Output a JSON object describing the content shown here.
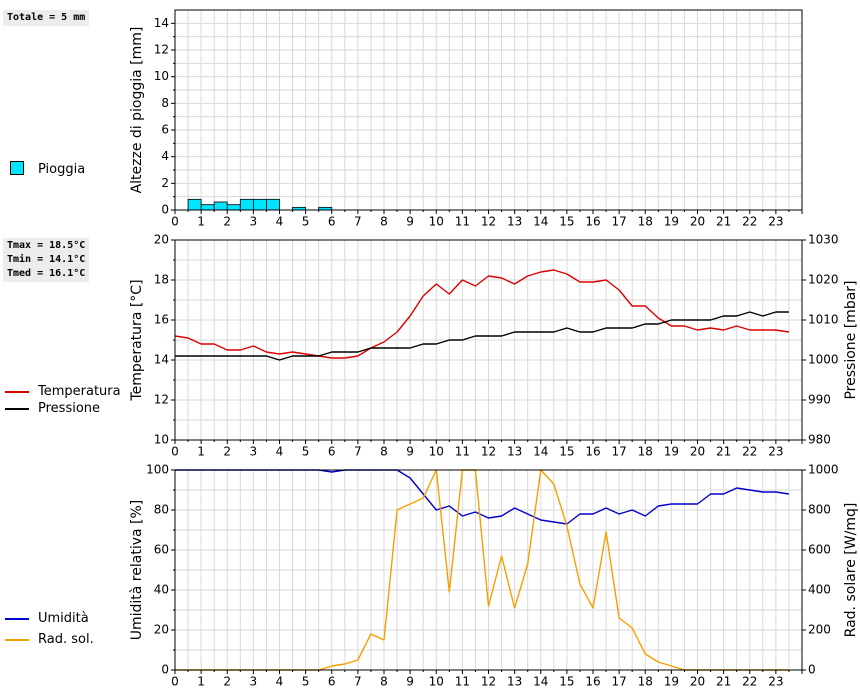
{
  "stats": {
    "rain_total": "Totale = 5 mm",
    "tmax": "Tmax = 18.5°C",
    "tmin": "Tmin = 14.1°C",
    "tmed": "Tmed = 16.1°C"
  },
  "legends": {
    "rain": "Pioggia",
    "temperature": "Temperatura",
    "pressure": "Pressione",
    "humidity": "Umidità",
    "radiation": "Rad. sol."
  },
  "colors": {
    "rain_bar": "#00e5ff",
    "temperature": "#dd0000",
    "pressure": "#000000",
    "humidity": "#0000cc",
    "radiation": "#f5a000",
    "grid": "#d9d9d9"
  },
  "chart_data": [
    {
      "type": "bar",
      "ylabel": "Altezze di pioggia [mm]",
      "xlim": [
        0,
        24
      ],
      "ylim": [
        0,
        15
      ],
      "yticks": [
        0,
        2,
        4,
        6,
        8,
        10,
        12,
        14
      ],
      "xticks": [
        0,
        1,
        2,
        3,
        4,
        5,
        6,
        7,
        8,
        9,
        10,
        11,
        12,
        13,
        14,
        15,
        16,
        17,
        18,
        19,
        20,
        21,
        22,
        23
      ],
      "bar_width_hours": 0.5,
      "series": [
        {
          "name": "Pioggia",
          "bars": [
            {
              "x": 0.5,
              "value": 0.8
            },
            {
              "x": 1.0,
              "value": 0.4
            },
            {
              "x": 1.5,
              "value": 0.6
            },
            {
              "x": 2.0,
              "value": 0.4
            },
            {
              "x": 2.5,
              "value": 0.8
            },
            {
              "x": 3.0,
              "value": 0.8
            },
            {
              "x": 3.5,
              "value": 0.8
            },
            {
              "x": 4.5,
              "value": 0.2
            },
            {
              "x": 5.5,
              "value": 0.2
            }
          ]
        }
      ],
      "grid": true
    },
    {
      "type": "line",
      "ylabel": "Temperatura [°C]",
      "y2label": "Pressione [mbar]",
      "xlim": [
        0,
        24
      ],
      "ylim": [
        10,
        20
      ],
      "y2lim": [
        980,
        1030
      ],
      "yticks": [
        10,
        12,
        14,
        16,
        18,
        20
      ],
      "y2ticks": [
        980,
        990,
        1000,
        1010,
        1020,
        1030
      ],
      "xticks": [
        0,
        1,
        2,
        3,
        4,
        5,
        6,
        7,
        8,
        9,
        10,
        11,
        12,
        13,
        14,
        15,
        16,
        17,
        18,
        19,
        20,
        21,
        22,
        23
      ],
      "series": [
        {
          "name": "Temperatura",
          "axis": "left",
          "x": [
            0,
            0.5,
            1,
            1.5,
            2,
            2.5,
            3,
            3.5,
            4,
            4.5,
            5,
            5.5,
            6,
            6.5,
            7,
            7.5,
            8,
            8.5,
            9,
            9.5,
            10,
            10.5,
            11,
            11.5,
            12,
            12.5,
            13,
            13.5,
            14,
            14.5,
            15,
            15.5,
            16,
            16.5,
            17,
            17.5,
            18,
            18.5,
            19,
            19.5,
            20,
            20.5,
            21,
            21.5,
            22,
            22.5,
            23,
            23.5
          ],
          "values": [
            15.2,
            15.1,
            14.8,
            14.8,
            14.5,
            14.5,
            14.7,
            14.4,
            14.3,
            14.4,
            14.3,
            14.2,
            14.1,
            14.1,
            14.2,
            14.6,
            14.9,
            15.4,
            16.2,
            17.2,
            17.8,
            17.3,
            18.0,
            17.7,
            18.2,
            18.1,
            17.8,
            18.2,
            18.4,
            18.5,
            18.3,
            17.9,
            17.9,
            18.0,
            17.5,
            16.7,
            16.7,
            16.1,
            15.7,
            15.7,
            15.5,
            15.6,
            15.5,
            15.7,
            15.5,
            15.5,
            15.5,
            15.4
          ]
        },
        {
          "name": "Pressione",
          "axis": "right",
          "x": [
            0,
            0.5,
            1,
            1.5,
            2,
            2.5,
            3,
            3.5,
            4,
            4.5,
            5,
            5.5,
            6,
            6.5,
            7,
            7.5,
            8,
            8.5,
            9,
            9.5,
            10,
            10.5,
            11,
            11.5,
            12,
            12.5,
            13,
            13.5,
            14,
            14.5,
            15,
            15.5,
            16,
            16.5,
            17,
            17.5,
            18,
            18.5,
            19,
            19.5,
            20,
            20.5,
            21,
            21.5,
            22,
            22.5,
            23,
            23.5
          ],
          "values": [
            1001,
            1001,
            1001,
            1001,
            1001,
            1001,
            1001,
            1001,
            1000,
            1001,
            1001,
            1001,
            1002,
            1002,
            1002,
            1003,
            1003,
            1003,
            1003,
            1004,
            1004,
            1005,
            1005,
            1006,
            1006,
            1006,
            1007,
            1007,
            1007,
            1007,
            1008,
            1007,
            1007,
            1008,
            1008,
            1008,
            1009,
            1009,
            1010,
            1010,
            1010,
            1010,
            1011,
            1011,
            1012,
            1011,
            1012,
            1012
          ]
        }
      ],
      "grid": true
    },
    {
      "type": "line",
      "ylabel": "Umidità relativa [%]",
      "y2label": "Rad. solare [W/mq]",
      "xlim": [
        0,
        24
      ],
      "ylim": [
        0,
        100
      ],
      "y2lim": [
        0,
        1000
      ],
      "yticks": [
        0,
        20,
        40,
        60,
        80,
        100
      ],
      "y2ticks": [
        0,
        200,
        400,
        600,
        800,
        1000
      ],
      "xticks": [
        0,
        1,
        2,
        3,
        4,
        5,
        6,
        7,
        8,
        9,
        10,
        11,
        12,
        13,
        14,
        15,
        16,
        17,
        18,
        19,
        20,
        21,
        22,
        23
      ],
      "series": [
        {
          "name": "Umidità",
          "axis": "left",
          "x": [
            0,
            0.5,
            1,
            1.5,
            2,
            2.5,
            3,
            3.5,
            4,
            4.5,
            5,
            5.5,
            6,
            6.5,
            7,
            7.5,
            8,
            8.5,
            9,
            9.5,
            10,
            10.5,
            11,
            11.5,
            12,
            12.5,
            13,
            13.5,
            14,
            14.5,
            15,
            15.5,
            16,
            16.5,
            17,
            17.5,
            18,
            18.5,
            19,
            19.5,
            20,
            20.5,
            21,
            21.5,
            22,
            22.5,
            23,
            23.5
          ],
          "values": [
            100,
            100,
            100,
            100,
            100,
            100,
            100,
            100,
            100,
            100,
            100,
            100,
            99,
            100,
            100,
            100,
            100,
            100,
            96,
            88,
            80,
            82,
            77,
            79,
            76,
            77,
            81,
            78,
            75,
            74,
            73,
            78,
            78,
            81,
            78,
            80,
            77,
            82,
            83,
            83,
            83,
            88,
            88,
            91,
            90,
            89,
            89,
            88
          ]
        },
        {
          "name": "Rad. sol.",
          "axis": "right",
          "x": [
            0,
            0.5,
            1,
            1.5,
            2,
            2.5,
            3,
            3.5,
            4,
            4.5,
            5,
            5.5,
            6,
            6.5,
            7,
            7.5,
            8,
            8.5,
            9,
            9.5,
            10,
            10.5,
            11,
            11.5,
            12,
            12.5,
            13,
            13.5,
            14,
            14.5,
            15,
            15.5,
            16,
            16.5,
            17,
            17.5,
            18,
            18.5,
            19,
            19.5,
            20,
            20.5,
            21,
            21.5,
            22,
            22.5,
            23,
            23.5
          ],
          "values": [
            0,
            0,
            0,
            0,
            0,
            0,
            0,
            0,
            0,
            0,
            0,
            0,
            20,
            30,
            50,
            180,
            150,
            800,
            830,
            860,
            1000,
            390,
            1050,
            1050,
            320,
            570,
            310,
            530,
            1000,
            930,
            720,
            430,
            310,
            690,
            260,
            210,
            80,
            40,
            20,
            0,
            0,
            0,
            0,
            0,
            0,
            0,
            0,
            0
          ]
        }
      ],
      "grid": true
    }
  ]
}
